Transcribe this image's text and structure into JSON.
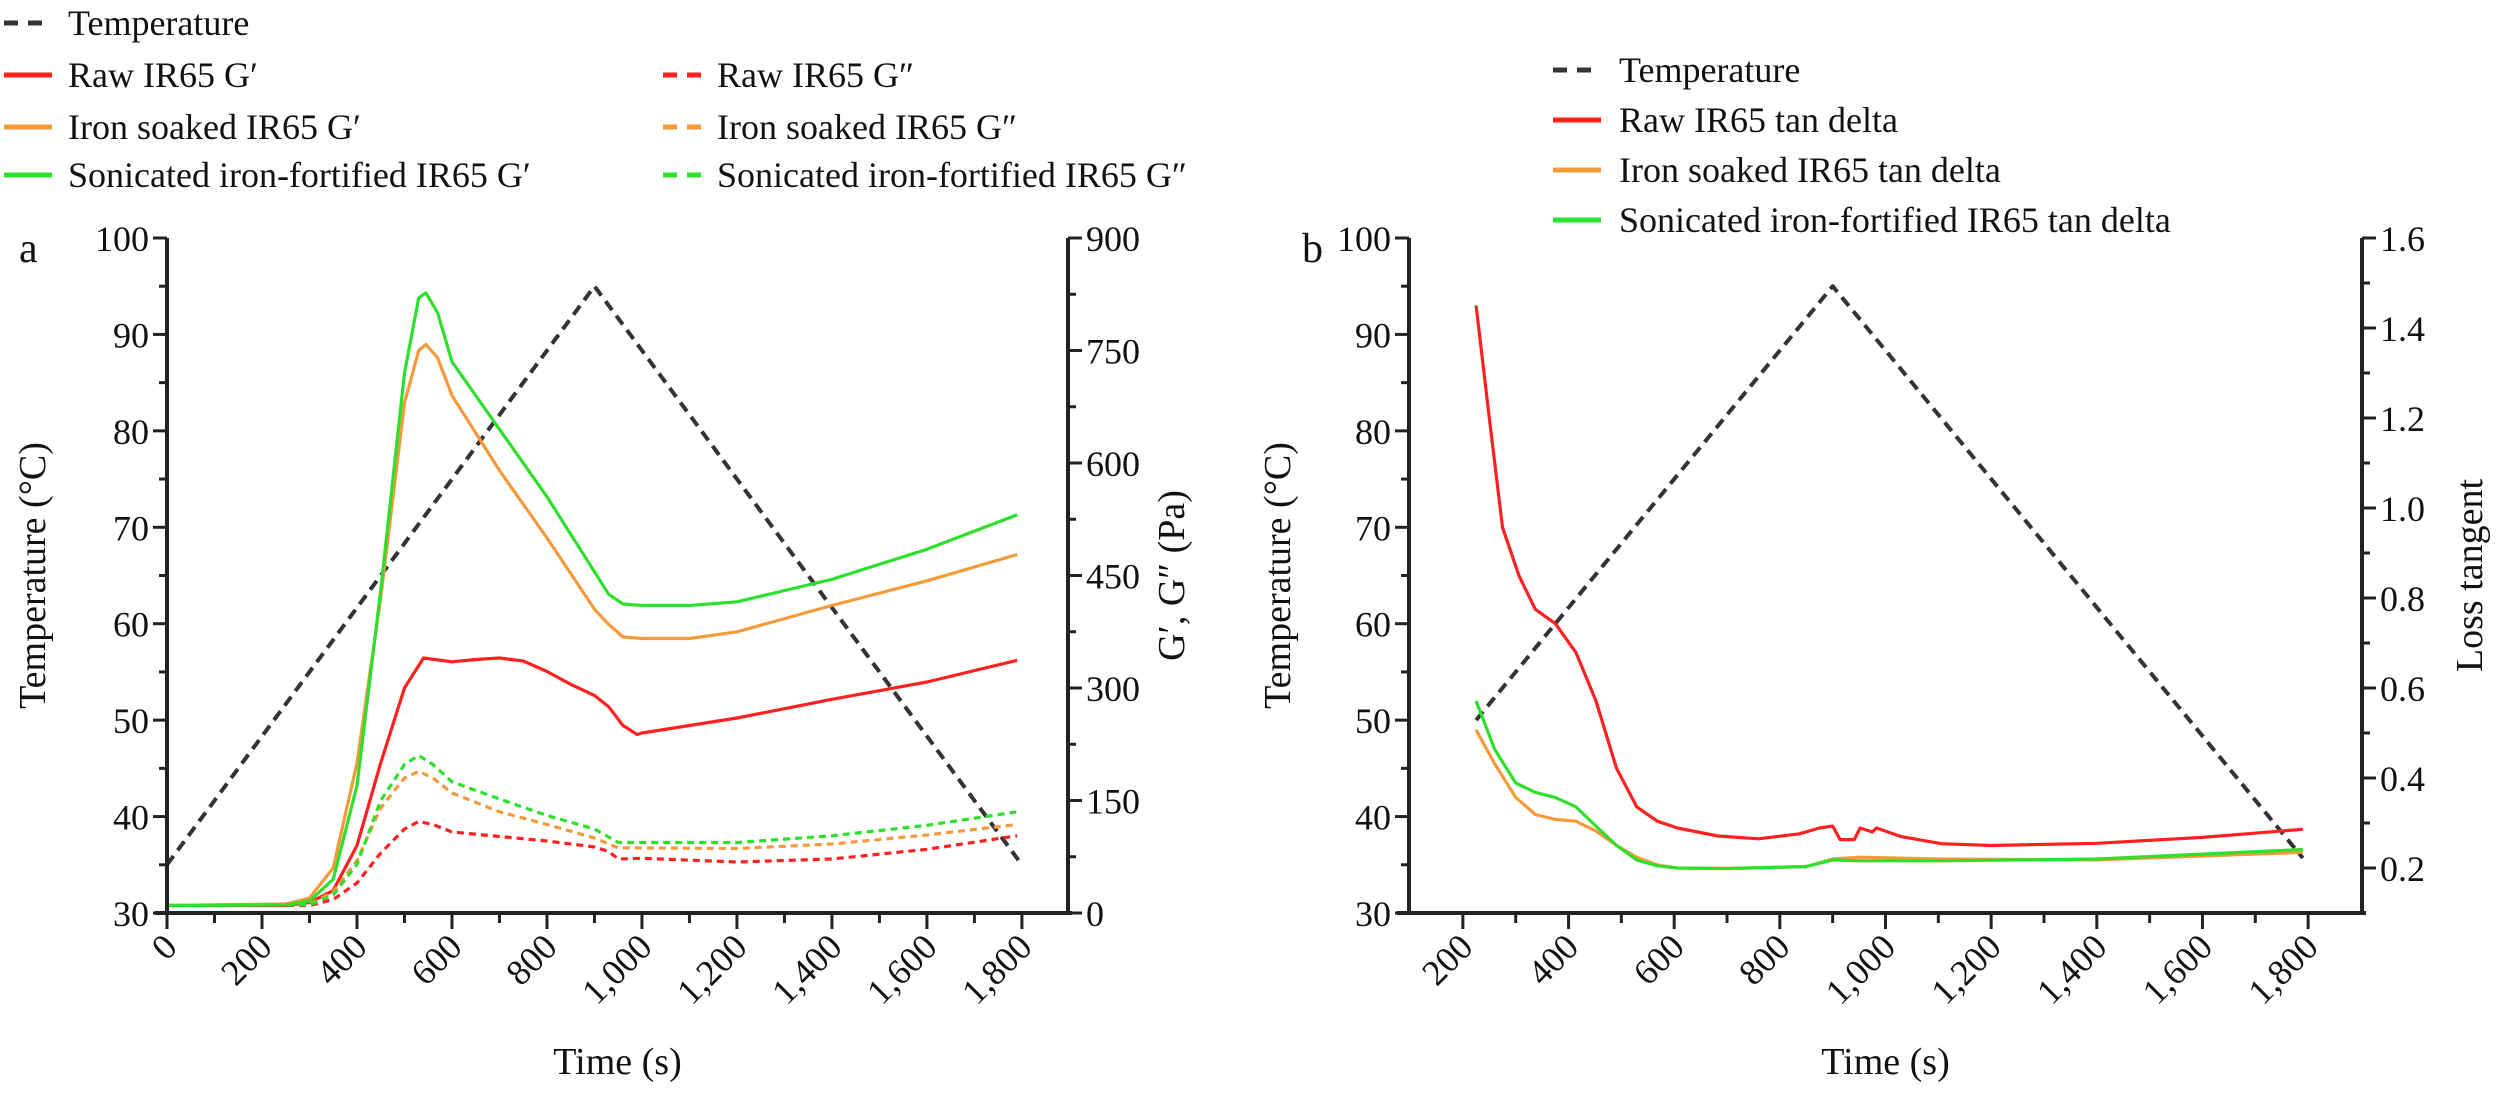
{
  "colors": {
    "temperature": "#333333",
    "raw": "#ff2020",
    "iron": "#f59a3a",
    "sonicated": "#2ee02e",
    "axis": "#222222"
  },
  "chart_data": [
    {
      "panel_label": "a",
      "type": "line",
      "xlabel": "Time (s)",
      "ylabel": "Temperature (°C)",
      "y2label": "G′, G″ (Pa)",
      "xlim": [
        0,
        1897
      ],
      "ylim": [
        30,
        100
      ],
      "y2lim": [
        0,
        900
      ],
      "xticks": [
        0,
        200,
        400,
        600,
        800,
        1000,
        1200,
        1400,
        1600,
        1800
      ],
      "xtick_labels": [
        "0",
        "200",
        "400",
        "600",
        "800",
        "1,000",
        "1,200",
        "1,400",
        "1,600",
        "1,800"
      ],
      "yticks": [
        30,
        40,
        50,
        60,
        70,
        80,
        90,
        100
      ],
      "ytick_labels": [
        "30",
        "40",
        "50",
        "60",
        "70",
        "80",
        "90",
        "100"
      ],
      "y2ticks": [
        0,
        150,
        300,
        450,
        600,
        750,
        900
      ],
      "y2tick_labels": [
        "0",
        "150",
        "300",
        "450",
        "600",
        "750",
        "900"
      ],
      "grid": false,
      "legend_placement": "top-left, above plot, two columns",
      "series": [
        {
          "name": "Temperature",
          "axis": "left",
          "color": "temperature",
          "dash": true,
          "points": [
            [
              0,
              35
            ],
            [
              900,
              95
            ],
            [
              1800,
              35
            ]
          ]
        },
        {
          "name": "Raw IR65 G′",
          "axis": "right",
          "color": "raw",
          "dash": false,
          "points": [
            [
              0,
              10
            ],
            [
              250,
              10
            ],
            [
              300,
              14
            ],
            [
              350,
              30
            ],
            [
              400,
              90
            ],
            [
              450,
              200
            ],
            [
              500,
              300
            ],
            [
              540,
              340
            ],
            [
              600,
              335
            ],
            [
              650,
              338
            ],
            [
              700,
              340
            ],
            [
              750,
              336
            ],
            [
              800,
              322
            ],
            [
              850,
              305
            ],
            [
              900,
              290
            ],
            [
              930,
              275
            ],
            [
              960,
              250
            ],
            [
              990,
              238
            ],
            [
              1000,
              240
            ],
            [
              1200,
              260
            ],
            [
              1400,
              285
            ],
            [
              1600,
              308
            ],
            [
              1790,
              337
            ]
          ]
        },
        {
          "name": "Raw IR65 G″",
          "axis": "right",
          "color": "raw",
          "dash": true,
          "points": [
            [
              0,
              10
            ],
            [
              300,
              10
            ],
            [
              350,
              18
            ],
            [
              400,
              40
            ],
            [
              450,
              80
            ],
            [
              500,
              112
            ],
            [
              530,
              122
            ],
            [
              560,
              118
            ],
            [
              600,
              108
            ],
            [
              800,
              96
            ],
            [
              900,
              88
            ],
            [
              930,
              82
            ],
            [
              950,
              72
            ],
            [
              1000,
              73
            ],
            [
              1200,
              68
            ],
            [
              1400,
              72
            ],
            [
              1600,
              85
            ],
            [
              1790,
              103
            ]
          ]
        },
        {
          "name": "Iron soaked IR65 G′",
          "axis": "right",
          "color": "iron",
          "dash": false,
          "points": [
            [
              0,
              10
            ],
            [
              250,
              12
            ],
            [
              300,
              20
            ],
            [
              350,
              60
            ],
            [
              400,
              200
            ],
            [
              450,
              420
            ],
            [
              500,
              680
            ],
            [
              530,
              750
            ],
            [
              545,
              758
            ],
            [
              570,
              740
            ],
            [
              600,
              690
            ],
            [
              700,
              590
            ],
            [
              800,
              500
            ],
            [
              900,
              405
            ],
            [
              930,
              385
            ],
            [
              960,
              368
            ],
            [
              1000,
              366
            ],
            [
              1100,
              366
            ],
            [
              1200,
              375
            ],
            [
              1400,
              410
            ],
            [
              1600,
              443
            ],
            [
              1790,
              478
            ]
          ]
        },
        {
          "name": "Iron soaked IR65 G″",
          "axis": "right",
          "color": "iron",
          "dash": true,
          "points": [
            [
              0,
              10
            ],
            [
              300,
              12
            ],
            [
              350,
              28
            ],
            [
              400,
              70
            ],
            [
              450,
              140
            ],
            [
              500,
              180
            ],
            [
              530,
              189
            ],
            [
              560,
              180
            ],
            [
              600,
              160
            ],
            [
              700,
              135
            ],
            [
              800,
              118
            ],
            [
              900,
              100
            ],
            [
              950,
              87
            ],
            [
              1200,
              86
            ],
            [
              1400,
              92
            ],
            [
              1600,
              104
            ],
            [
              1790,
              118
            ]
          ]
        },
        {
          "name": "Sonicated iron-fortified IR65 G′",
          "axis": "right",
          "color": "sonicated",
          "dash": false,
          "points": [
            [
              0,
              10
            ],
            [
              250,
              11
            ],
            [
              300,
              16
            ],
            [
              350,
              45
            ],
            [
              400,
              170
            ],
            [
              450,
              430
            ],
            [
              500,
              720
            ],
            [
              530,
              820
            ],
            [
              545,
              827
            ],
            [
              570,
              800
            ],
            [
              600,
              735
            ],
            [
              700,
              645
            ],
            [
              800,
              555
            ],
            [
              900,
              455
            ],
            [
              930,
              425
            ],
            [
              960,
              412
            ],
            [
              1000,
              410
            ],
            [
              1100,
              410
            ],
            [
              1200,
              415
            ],
            [
              1400,
              445
            ],
            [
              1600,
              485
            ],
            [
              1790,
              531
            ]
          ]
        },
        {
          "name": "Sonicated iron-fortified IR65 G″",
          "axis": "right",
          "color": "sonicated",
          "dash": true,
          "points": [
            [
              0,
              10
            ],
            [
              300,
              11
            ],
            [
              350,
              24
            ],
            [
              400,
              65
            ],
            [
              450,
              150
            ],
            [
              500,
              198
            ],
            [
              530,
              210
            ],
            [
              560,
              198
            ],
            [
              600,
              175
            ],
            [
              700,
              152
            ],
            [
              800,
              130
            ],
            [
              900,
              112
            ],
            [
              950,
              94
            ],
            [
              1200,
              94
            ],
            [
              1400,
              103
            ],
            [
              1600,
              117
            ],
            [
              1790,
              135
            ]
          ]
        }
      ]
    },
    {
      "panel_label": "b",
      "type": "line",
      "xlabel": "Time (s)",
      "ylabel": "Temperature (°C)",
      "y2label": "Loss tangent",
      "xlim": [
        98,
        1902
      ],
      "ylim": [
        30,
        100
      ],
      "y2lim": [
        0.1,
        1.6
      ],
      "xticks": [
        200,
        400,
        600,
        800,
        1000,
        1200,
        1400,
        1600,
        1800
      ],
      "xtick_labels": [
        "200",
        "400",
        "600",
        "800",
        "1,000",
        "1,200",
        "1,400",
        "1,600",
        "1,800"
      ],
      "yticks": [
        30,
        40,
        50,
        60,
        70,
        80,
        90,
        100
      ],
      "ytick_labels": [
        "30",
        "40",
        "50",
        "60",
        "70",
        "80",
        "90",
        "100"
      ],
      "y2ticks": [
        0.2,
        0.4,
        0.6,
        0.8,
        1.0,
        1.2,
        1.4,
        1.6
      ],
      "y2tick_labels": [
        "0.2",
        "0.4",
        "0.6",
        "0.8",
        "1.0",
        "1.2",
        "1.4",
        "1.6"
      ],
      "grid": false,
      "legend_placement": "top-center, above plot",
      "series": [
        {
          "name": "Temperature",
          "axis": "left",
          "color": "temperature",
          "dash": true,
          "points": [
            [
              225,
              50
            ],
            [
              900,
              95
            ],
            [
              1790,
              35.7
            ]
          ]
        },
        {
          "name": "Raw IR65 tan delta",
          "axis": "right",
          "color": "raw",
          "dash": false,
          "points": [
            [
              225,
              1.45
            ],
            [
              250,
              1.2
            ],
            [
              275,
              0.957
            ],
            [
              306,
              0.85
            ],
            [
              337,
              0.775
            ],
            [
              375,
              0.743
            ],
            [
              414,
              0.679
            ],
            [
              452,
              0.571
            ],
            [
              491,
              0.421
            ],
            [
              529,
              0.336
            ],
            [
              568,
              0.304
            ],
            [
              606,
              0.289
            ],
            [
              683,
              0.271
            ],
            [
              760,
              0.265
            ],
            [
              837,
              0.276
            ],
            [
              875,
              0.289
            ],
            [
              900,
              0.293
            ],
            [
              914,
              0.263
            ],
            [
              941,
              0.263
            ],
            [
              952,
              0.289
            ],
            [
              975,
              0.28
            ],
            [
              983,
              0.289
            ],
            [
              1029,
              0.27
            ],
            [
              1106,
              0.254
            ],
            [
              1200,
              0.25
            ],
            [
              1400,
              0.255
            ],
            [
              1600,
              0.268
            ],
            [
              1790,
              0.286
            ]
          ]
        },
        {
          "name": "Iron soaked IR65 tan delta",
          "axis": "right",
          "color": "iron",
          "dash": false,
          "points": [
            [
              225,
              0.507
            ],
            [
              260,
              0.432
            ],
            [
              300,
              0.357
            ],
            [
              337,
              0.319
            ],
            [
              375,
              0.308
            ],
            [
              414,
              0.304
            ],
            [
              452,
              0.282
            ],
            [
              491,
              0.25
            ],
            [
              529,
              0.224
            ],
            [
              568,
              0.207
            ],
            [
              606,
              0.2
            ],
            [
              700,
              0.199
            ],
            [
              850,
              0.203
            ],
            [
              900,
              0.22
            ],
            [
              950,
              0.224
            ],
            [
              1100,
              0.22
            ],
            [
              1400,
              0.218
            ],
            [
              1790,
              0.235
            ]
          ]
        },
        {
          "name": "Sonicated iron-fortified IR65 tan delta",
          "axis": "right",
          "color": "sonicated",
          "dash": false,
          "points": [
            [
              225,
              0.571
            ],
            [
              260,
              0.464
            ],
            [
              300,
              0.389
            ],
            [
              337,
              0.368
            ],
            [
              375,
              0.357
            ],
            [
              414,
              0.336
            ],
            [
              452,
              0.293
            ],
            [
              491,
              0.25
            ],
            [
              529,
              0.218
            ],
            [
              568,
              0.205
            ],
            [
              606,
              0.2
            ],
            [
              700,
              0.199
            ],
            [
              850,
              0.203
            ],
            [
              900,
              0.218
            ],
            [
              950,
              0.216
            ],
            [
              1100,
              0.216
            ],
            [
              1400,
              0.22
            ],
            [
              1790,
              0.241
            ]
          ]
        }
      ]
    }
  ]
}
